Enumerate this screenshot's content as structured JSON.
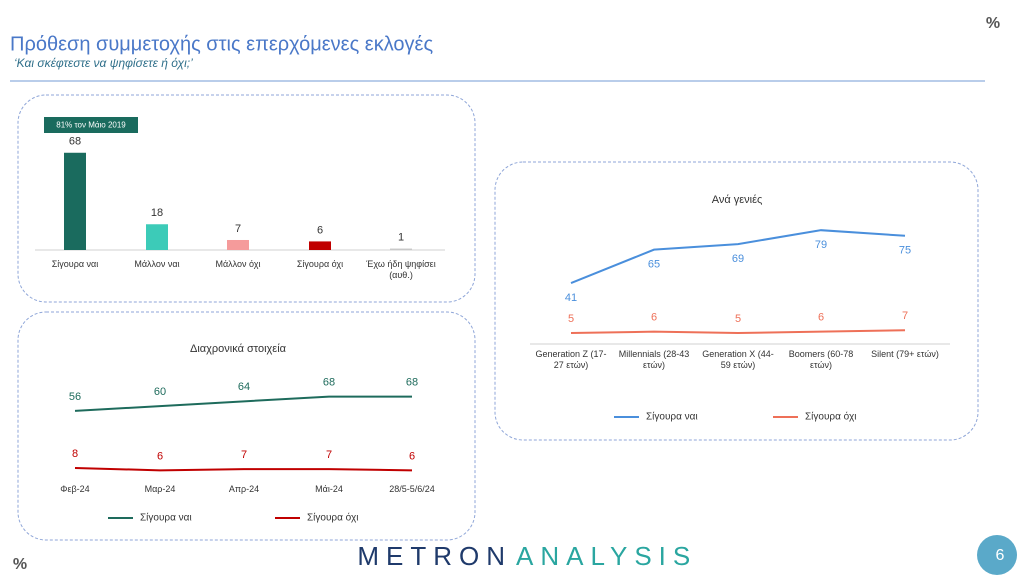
{
  "header": {
    "title": "Πρόθεση συμμετοχής στις επερχόμενες εκλογές",
    "subtitle": "‘Και σκέφτεστε να ψηφίσετε ή όχι;’",
    "unit": "%"
  },
  "chart_data": [
    {
      "type": "bar",
      "annotation": "81% τον Μάιο 2019",
      "categories": [
        "Σίγουρα ναι",
        "Μάλλον ναι",
        "Μάλλον όχι",
        "Σίγουρα όχι",
        "Έχω ήδη ψηφίσει (αυθ.)"
      ],
      "values": [
        68,
        18,
        7,
        6,
        1
      ],
      "colors": [
        "#1a6b5e",
        "#3ccbb8",
        "#f59b9b",
        "#c00000",
        "#c8c8c8"
      ]
    },
    {
      "type": "line",
      "title": "Διαχρονικά στοιχεία",
      "categories": [
        "Φεβ-24",
        "Μαρ-24",
        "Απρ-24",
        "Μάι-24",
        "28/5-5/6/24"
      ],
      "series": [
        {
          "name": "Σίγουρα ναι",
          "color": "#1e6b5c",
          "values": [
            56,
            60,
            64,
            68,
            68
          ]
        },
        {
          "name": "Σίγουρα όχι",
          "color": "#c00000",
          "values": [
            8,
            6,
            7,
            7,
            6
          ]
        }
      ]
    },
    {
      "type": "line",
      "title": "Ανά γενιές",
      "categories": [
        "Generation Z (17-27 ετών)",
        "Millennials (28-43 ετών)",
        "Generation X (44-59 ετών)",
        "Boomers (60-78 ετών)",
        "Silent (79+ ετών)"
      ],
      "series": [
        {
          "name": "Σίγουρα ναι",
          "color": "#4a8fdc",
          "values": [
            41,
            65,
            69,
            79,
            75
          ]
        },
        {
          "name": "Σίγουρα όχι",
          "color": "#ee7058",
          "values": [
            5,
            6,
            5,
            6,
            7
          ]
        }
      ]
    }
  ],
  "footer": {
    "unit": "%",
    "logo_left": "METRON",
    "logo_right": "ANALYSIS",
    "page": "6"
  }
}
